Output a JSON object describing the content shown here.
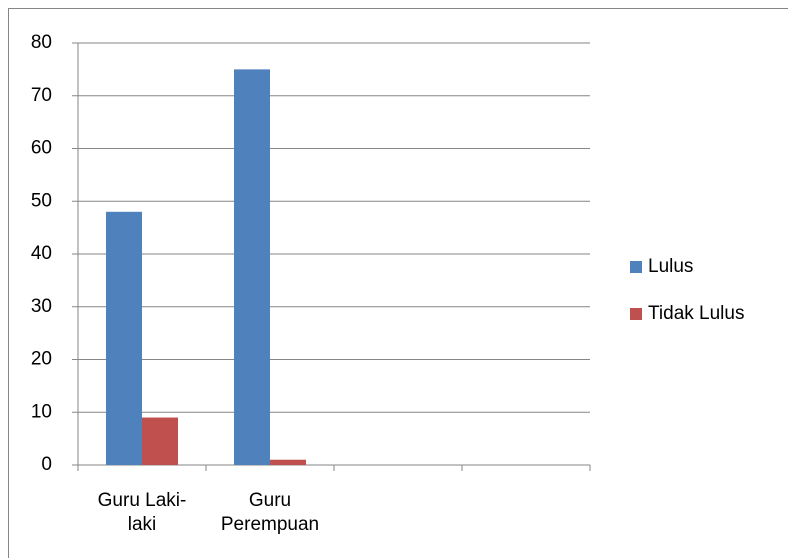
{
  "chart_data": {
    "type": "bar",
    "categories": [
      "Guru Laki-laki",
      "Guru Perempuan",
      null,
      null
    ],
    "series": [
      {
        "name": "Lulus",
        "color": "#4f81bd",
        "values": [
          48,
          75,
          null,
          null
        ]
      },
      {
        "name": "Tidak Lulus",
        "color": "#c0504d",
        "values": [
          9,
          1,
          null,
          null
        ]
      }
    ],
    "ylim": [
      0,
      80
    ],
    "yticks": [
      0,
      10,
      20,
      30,
      40,
      50,
      60,
      70,
      80
    ],
    "grid": true,
    "legend": "right"
  }
}
